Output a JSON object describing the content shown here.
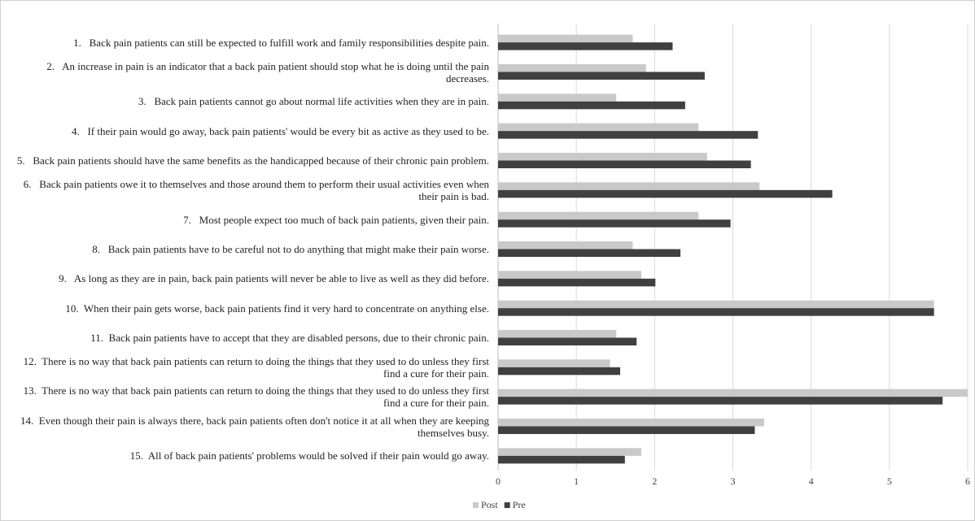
{
  "chart_data": {
    "type": "bar",
    "orientation": "horizontal",
    "categories": [
      "1.   Back pain patients can still be expected to fulfill work and family responsibilities despite pain.",
      "2.   An increase in pain is an indicator that a back pain patient should stop what he is doing until the pain decreases.",
      "3.   Back pain patients cannot go about normal life activities when they are in pain.",
      "4.   If their pain would go away, back pain patients' would be every bit as active as they used to be.",
      "5.   Back pain patients should have the same benefits as the handicapped because of their chronic pain problem.",
      "6.   Back pain patients owe it to themselves and those around them to perform their usual activities even when their pain is bad.",
      "7.   Most people expect too much of back pain patients, given their pain.",
      "8.   Back pain patients have to be careful not to do anything that might make their pain worse.",
      "9.   As long as they are in pain, back pain patients will never be able to live as well as they did before.",
      "10.  When their pain gets worse, back pain patients find it very hard to concentrate on anything else.",
      "11.  Back pain patients have to accept that they are disabled persons, due to their chronic pain.",
      "12.  There is no way that back pain patients can return to doing the things that they used to do unless they first find a cure for their pain.",
      "13.  There is no way that back pain patients can return to doing the things that they used to do unless they first find a cure for their pain.",
      "14.  Even though their pain is always there, back pain patients often don't notice it at all when they are keeping themselves busy.",
      "15.  All of back pain patients' problems would be solved if their pain would go away."
    ],
    "series": [
      {
        "name": "Post",
        "color": "#c9c9c9",
        "values": [
          1.72,
          1.89,
          1.51,
          2.56,
          2.67,
          3.34,
          2.56,
          1.72,
          1.83,
          5.57,
          1.51,
          1.43,
          6.0,
          3.4,
          1.83
        ]
      },
      {
        "name": "Pre",
        "color": "#404040",
        "values": [
          2.23,
          2.64,
          2.39,
          3.32,
          3.23,
          4.27,
          2.97,
          2.33,
          2.01,
          5.57,
          1.77,
          1.56,
          5.68,
          3.28,
          1.62
        ]
      }
    ],
    "xlim": [
      0,
      6
    ],
    "xticks": [
      0,
      1,
      2,
      3,
      4,
      5,
      6
    ],
    "grid": true,
    "legend": "bottom"
  }
}
